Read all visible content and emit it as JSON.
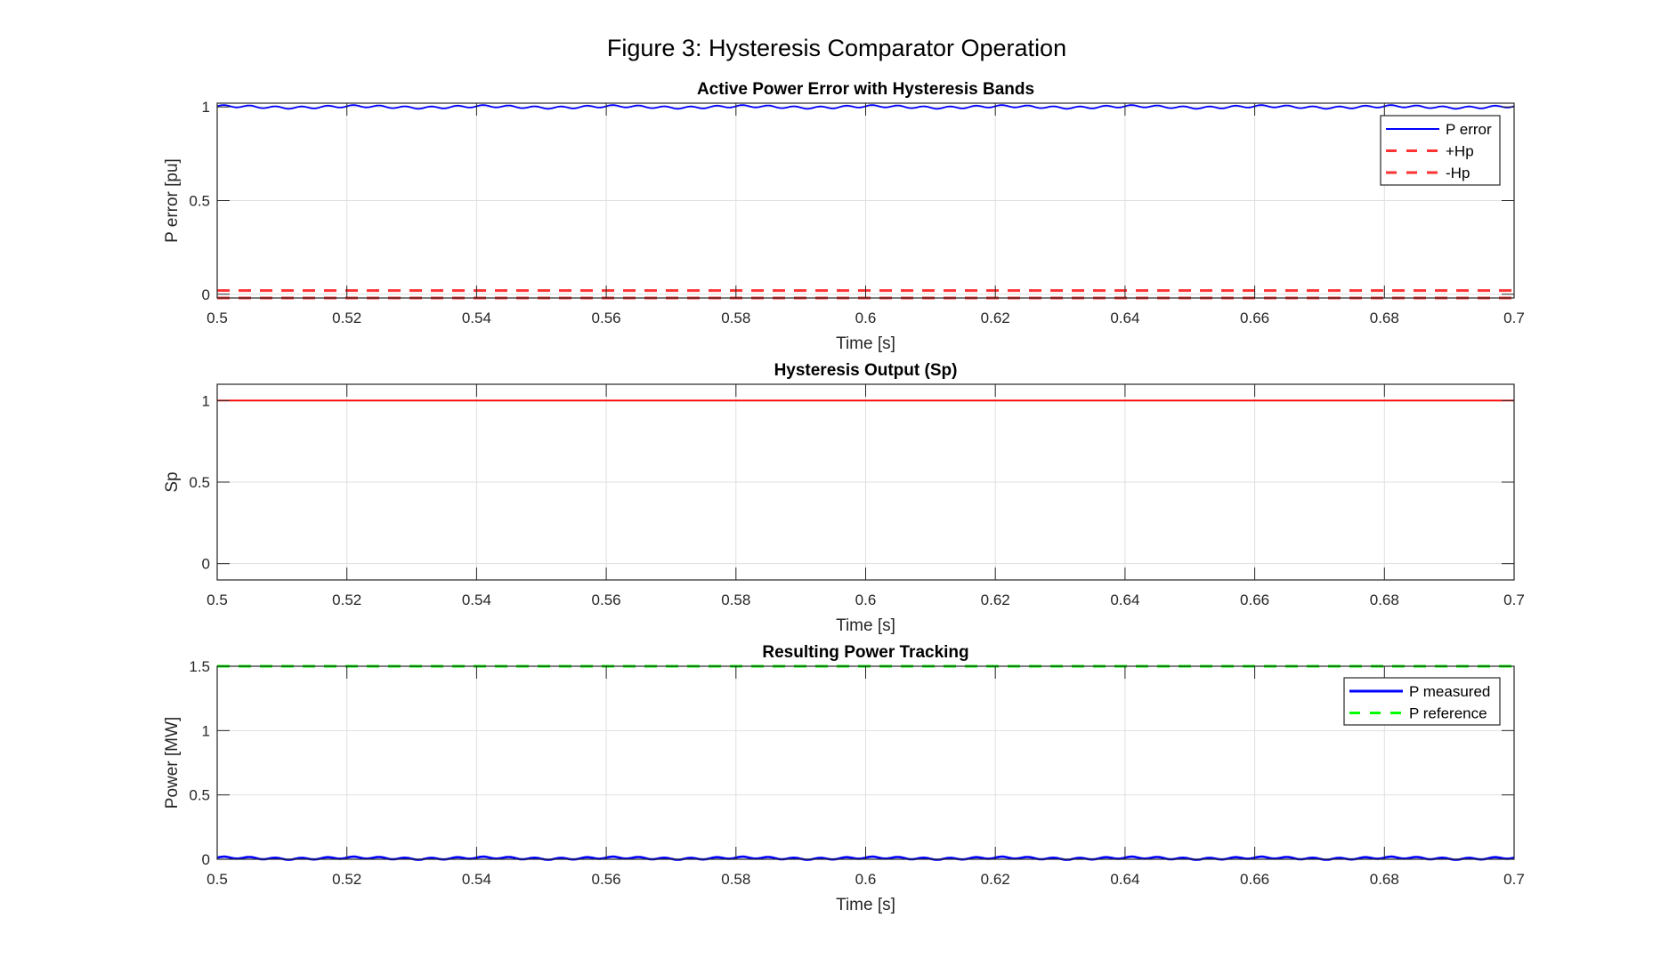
{
  "chart_data": {
    "title": "Figure 3: Hysteresis Comparator Operation",
    "subplots": [
      {
        "type": "line",
        "title": "Active Power Error with Hysteresis Bands",
        "xlabel": "Time [s]",
        "ylabel": "P error [pu]",
        "xlim": [
          0.5,
          0.7
        ],
        "ylim": [
          -0.02,
          1.02
        ],
        "xticks": [
          "0.5",
          "0.52",
          "0.54",
          "0.56",
          "0.58",
          "0.6",
          "0.62",
          "0.64",
          "0.66",
          "0.68",
          "0.7"
        ],
        "yticks": [
          "0",
          "0.5",
          "1"
        ],
        "ytick_values": [
          0,
          0.5,
          1
        ],
        "grid": true,
        "legend_position": "top-right",
        "series": [
          {
            "name": "P error",
            "color": "#0000ff",
            "style": "solid",
            "mean": 1.0,
            "ripple_amplitude": 0.01
          },
          {
            "name": "+Hp",
            "color": "#ff3333",
            "style": "dashed",
            "value": 0.02
          },
          {
            "name": "-Hp",
            "color": "#ff3333",
            "style": "dashed",
            "value": -0.02
          }
        ]
      },
      {
        "type": "line",
        "title": "Hysteresis Output (Sp)",
        "xlabel": "Time [s]",
        "ylabel": "Sp",
        "xlim": [
          0.5,
          0.7
        ],
        "ylim": [
          -0.1,
          1.1
        ],
        "xticks": [
          "0.5",
          "0.52",
          "0.54",
          "0.56",
          "0.58",
          "0.6",
          "0.62",
          "0.64",
          "0.66",
          "0.68",
          "0.7"
        ],
        "yticks": [
          "0",
          "0.5",
          "1"
        ],
        "ytick_values": [
          0,
          0.5,
          1
        ],
        "grid": true,
        "series": [
          {
            "name": "Sp",
            "color": "#ff0000",
            "style": "solid",
            "value": 1
          }
        ]
      },
      {
        "type": "line",
        "title": "Resulting Power Tracking",
        "xlabel": "Time [s]",
        "ylabel": "Power [MW]",
        "xlim": [
          0.5,
          0.7
        ],
        "ylim": [
          0,
          1.5
        ],
        "xticks": [
          "0.5",
          "0.52",
          "0.54",
          "0.56",
          "0.58",
          "0.6",
          "0.62",
          "0.64",
          "0.66",
          "0.68",
          "0.7"
        ],
        "yticks": [
          "0",
          "0.5",
          "1",
          "1.5"
        ],
        "ytick_values": [
          0,
          0.5,
          1,
          1.5
        ],
        "grid": true,
        "legend_position": "top-right",
        "series": [
          {
            "name": "P measured",
            "color": "#0000ff",
            "style": "solid",
            "mean": 0.008,
            "ripple_amplitude": 0.012
          },
          {
            "name": "P reference",
            "color": "#00ff00",
            "style": "dashed",
            "value": 1.5
          }
        ]
      }
    ]
  }
}
